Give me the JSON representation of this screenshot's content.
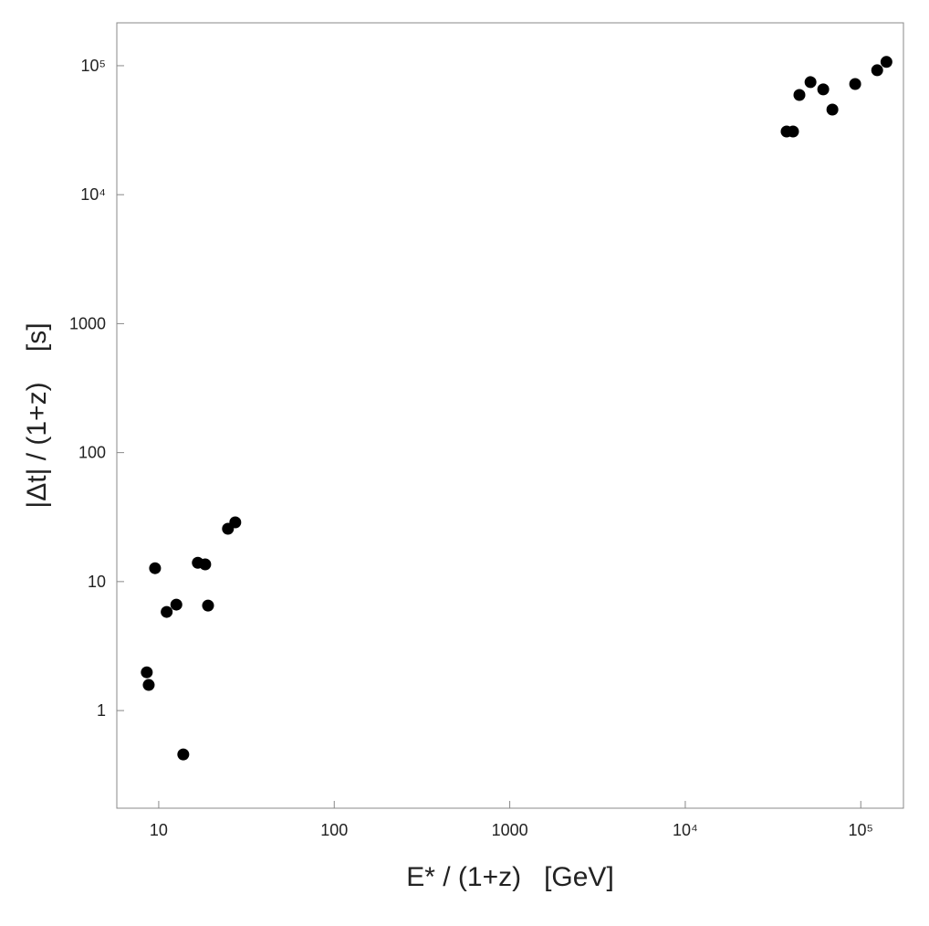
{
  "chart_data": {
    "type": "scatter",
    "xlabel": "E* / (1+z)   [GeV]",
    "ylabel": "|Δt| / (1+z)    [s]",
    "x": [
      8.55,
      8.77,
      9.53,
      11.1,
      12.6,
      13.8,
      16.7,
      18.4,
      19.1,
      24.8,
      27.3,
      37800,
      41100,
      44700,
      51700,
      61100,
      68900,
      92900,
      124000,
      140000
    ],
    "values": [
      1.98,
      1.58,
      12.7,
      5.82,
      6.63,
      0.457,
      14.0,
      13.6,
      6.52,
      25.7,
      28.8,
      30900,
      30900,
      59300,
      74600,
      65500,
      45700,
      72100,
      92200,
      107000
    ],
    "color": "#000000",
    "xscale": "log",
    "yscale": "log",
    "xlim": [
      5.77,
      175000
    ],
    "ylim": [
      0.175,
      215000
    ],
    "xticks": [
      10,
      100,
      1000,
      {
        "value": 10000,
        "label": "10⁴"
      },
      {
        "value": 100000,
        "label": "10⁵"
      }
    ],
    "yticks": [
      1,
      10,
      100,
      1000,
      {
        "value": 10000,
        "label": "10⁴"
      },
      {
        "value": 100000,
        "label": "10⁵"
      }
    ]
  }
}
